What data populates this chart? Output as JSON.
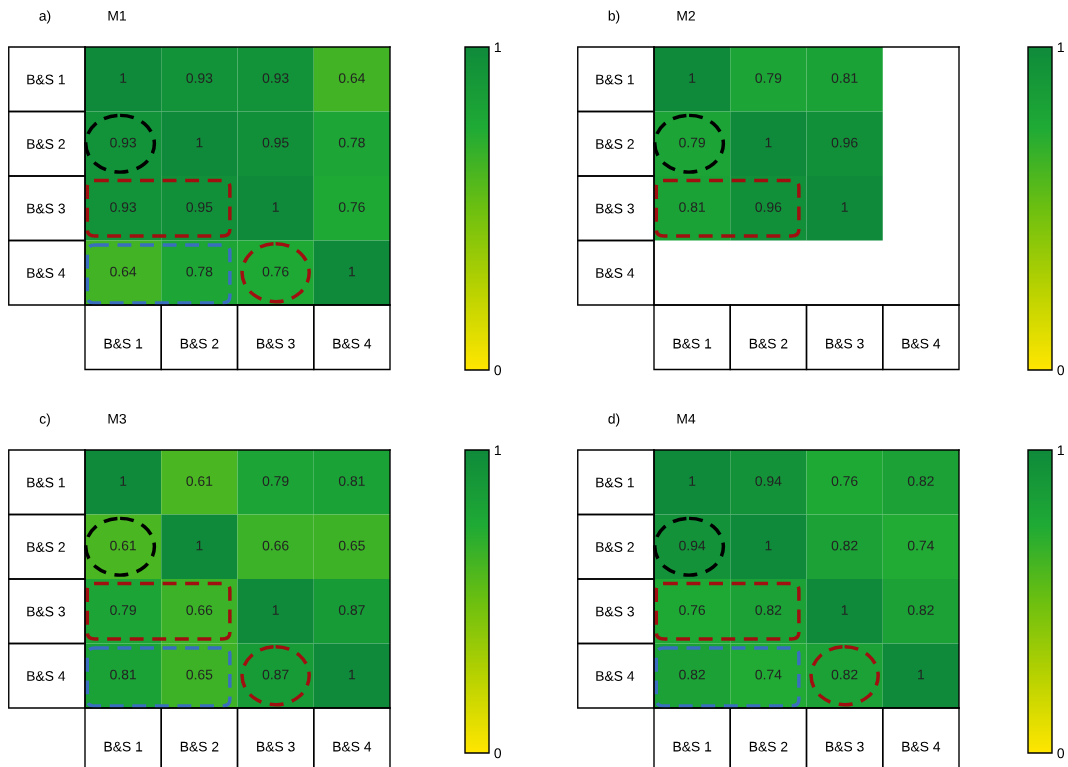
{
  "chart_data": [
    {
      "type": "heatmap",
      "title": "M1",
      "annotations": [
        "a)"
      ],
      "categories": [
        "B&S 1",
        "B&S 2",
        "B&S 3",
        "B&S 4"
      ],
      "y_categories": [
        "B&S 1",
        "B&S 2",
        "B&S 3",
        "B&S 4"
      ],
      "cells": [
        [
          1,
          0.93,
          0.93,
          0.64
        ],
        [
          0.93,
          1,
          0.95,
          0.78
        ],
        [
          0.93,
          0.95,
          1,
          0.76
        ],
        [
          0.64,
          0.78,
          0.76,
          1
        ]
      ],
      "clim": [
        0,
        1
      ],
      "cticks": [
        0,
        1
      ],
      "data_labels": true
    },
    {
      "type": "heatmap",
      "title": "M2",
      "annotations": [
        "b)"
      ],
      "categories": [
        "B&S 1",
        "B&S 2",
        "B&S 3",
        "B&S 4"
      ],
      "y_categories": [
        "B&S 1",
        "B&S 2",
        "B&S 3",
        "B&S 4"
      ],
      "cells": [
        [
          1,
          0.79,
          0.81,
          null
        ],
        [
          0.79,
          1,
          0.96,
          null
        ],
        [
          0.81,
          0.96,
          1,
          null
        ],
        [
          null,
          null,
          null,
          null
        ]
      ],
      "clim": [
        0,
        1
      ],
      "cticks": [
        0,
        1
      ],
      "data_labels": true
    },
    {
      "type": "heatmap",
      "title": "M3",
      "annotations": [
        "c)"
      ],
      "categories": [
        "B&S 1",
        "B&S 2",
        "B&S 3",
        "B&S 4"
      ],
      "y_categories": [
        "B&S 1",
        "B&S 2",
        "B&S 3",
        "B&S 4"
      ],
      "cells": [
        [
          1,
          0.61,
          0.79,
          0.81
        ],
        [
          0.61,
          1,
          0.66,
          0.65
        ],
        [
          0.79,
          0.66,
          1,
          0.87
        ],
        [
          0.81,
          0.65,
          0.87,
          1
        ]
      ],
      "clim": [
        0,
        1
      ],
      "cticks": [
        0,
        1
      ],
      "data_labels": true
    },
    {
      "type": "heatmap",
      "title": "M4",
      "annotations": [
        "d)"
      ],
      "categories": [
        "B&S 1",
        "B&S 2",
        "B&S 3",
        "B&S 4"
      ],
      "y_categories": [
        "B&S 1",
        "B&S 2",
        "B&S 3",
        "B&S 4"
      ],
      "cells": [
        [
          1,
          0.94,
          0.76,
          0.82
        ],
        [
          0.94,
          1,
          0.82,
          0.74
        ],
        [
          0.76,
          0.82,
          1,
          0.82
        ],
        [
          0.82,
          0.74,
          0.82,
          1
        ]
      ],
      "clim": [
        0,
        1
      ],
      "cticks": [
        0,
        1
      ],
      "data_labels": true
    }
  ]
}
